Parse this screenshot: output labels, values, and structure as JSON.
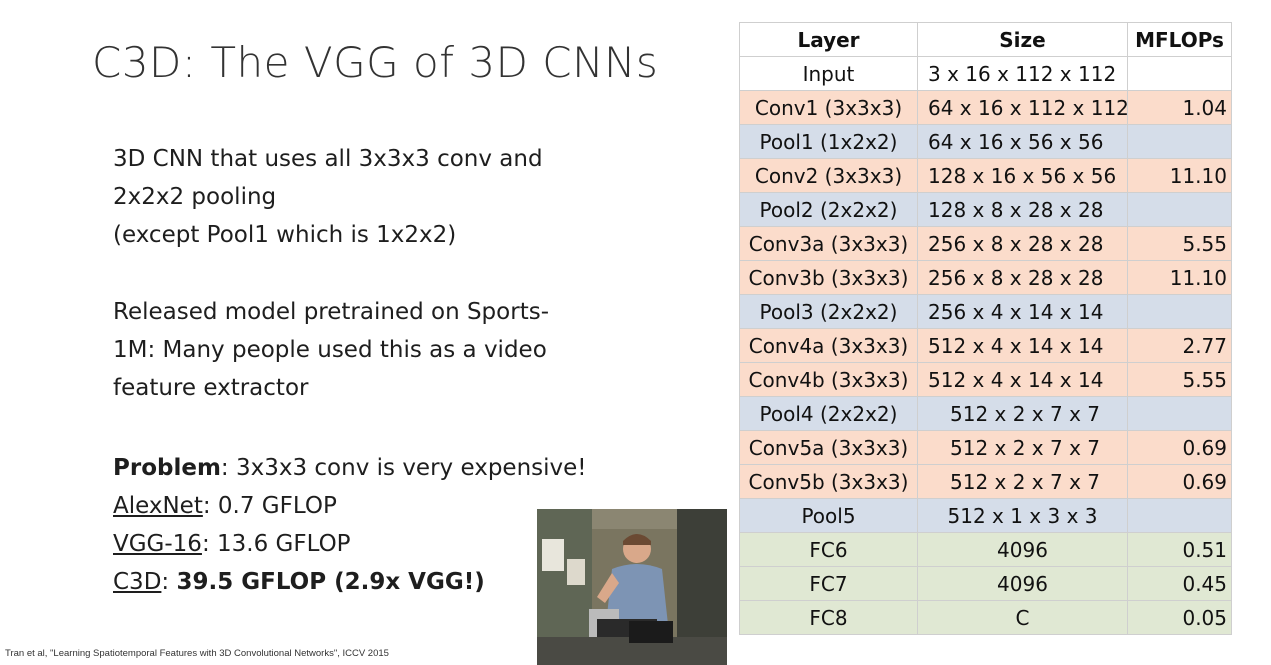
{
  "slide": {
    "title": "C3D: The VGG of 3D CNNs",
    "para1": [
      "3D CNN that uses all 3x3x3 conv and",
      "2x2x2 pooling",
      "(except Pool1 which is 1x2x2)"
    ],
    "para2": [
      "Released model pretrained on Sports-",
      "1M: Many people used this as a video",
      "feature extractor"
    ],
    "problem_label": "Problem",
    "problem_text": ": 3x3x3 conv is very expensive!",
    "alexnet_label": "AlexNet",
    "alexnet_value": ": 0.7 GFLOP",
    "vgg_label": "VGG-16",
    "vgg_value": ": 13.6 GFLOP",
    "c3d_label": "C3D",
    "c3d_sep": ": ",
    "c3d_value": "39.5 GFLOP (2.9x VGG!)",
    "citation": "Tran et al, \"Learning Spatiotemporal Features with 3D Convolutional Networks\", ICCV 2015"
  },
  "table": {
    "headers": [
      "Layer",
      "Size",
      "MFLOPs"
    ],
    "rows": [
      {
        "layer": "Input",
        "size": "3 x 16 x 112 x 112",
        "mflops": "",
        "kind": "input"
      },
      {
        "layer": "Conv1 (3x3x3)",
        "size": "64 x 16 x 112 x 112",
        "mflops": "1.04",
        "kind": "conv"
      },
      {
        "layer": "Pool1 (1x2x2)",
        "size": "64 x 16 x 56 x 56",
        "mflops": "",
        "kind": "pool"
      },
      {
        "layer": "Conv2 (3x3x3)",
        "size": "128 x 16 x 56 x 56",
        "mflops": "11.10",
        "kind": "conv"
      },
      {
        "layer": "Pool2 (2x2x2)",
        "size": "128 x 8 x 28 x 28",
        "mflops": "",
        "kind": "pool"
      },
      {
        "layer": "Conv3a (3x3x3)",
        "size": "256 x 8 x 28 x 28",
        "mflops": "5.55",
        "kind": "conv"
      },
      {
        "layer": "Conv3b (3x3x3)",
        "size": "256 x 8 x 28 x 28",
        "mflops": "11.10",
        "kind": "conv"
      },
      {
        "layer": "Pool3 (2x2x2)",
        "size": "256 x 4 x 14 x 14",
        "mflops": "",
        "kind": "pool"
      },
      {
        "layer": "Conv4a (3x3x3)",
        "size": "512 x 4 x 14 x 14",
        "mflops": "2.77",
        "kind": "conv"
      },
      {
        "layer": "Conv4b (3x3x3)",
        "size": "512 x 4 x 14 x 14",
        "mflops": "5.55",
        "kind": "conv"
      },
      {
        "layer": "Pool4 (2x2x2)",
        "size": "512 x 2 x 7 x 7",
        "mflops": "",
        "kind": "pool"
      },
      {
        "layer": "Conv5a (3x3x3)",
        "size": "512 x 2 x 7 x 7",
        "mflops": "0.69",
        "kind": "conv"
      },
      {
        "layer": "Conv5b (3x3x3)",
        "size": "512 x 2 x 7 x 7",
        "mflops": "0.69",
        "kind": "conv"
      },
      {
        "layer": "Pool5",
        "size": "512 x 1 x 3 x 3",
        "mflops": "",
        "kind": "pool"
      },
      {
        "layer": "FC6",
        "size": "4096",
        "mflops": "0.51",
        "kind": "fc"
      },
      {
        "layer": "FC7",
        "size": "4096",
        "mflops": "0.45",
        "kind": "fc"
      },
      {
        "layer": "FC8",
        "size": "C",
        "mflops": "0.05",
        "kind": "fc"
      }
    ]
  },
  "colors": {
    "conv": "#fbdccb",
    "pool": "#d5dde9",
    "fc": "#e0e8d3",
    "input": "#ffffff"
  }
}
